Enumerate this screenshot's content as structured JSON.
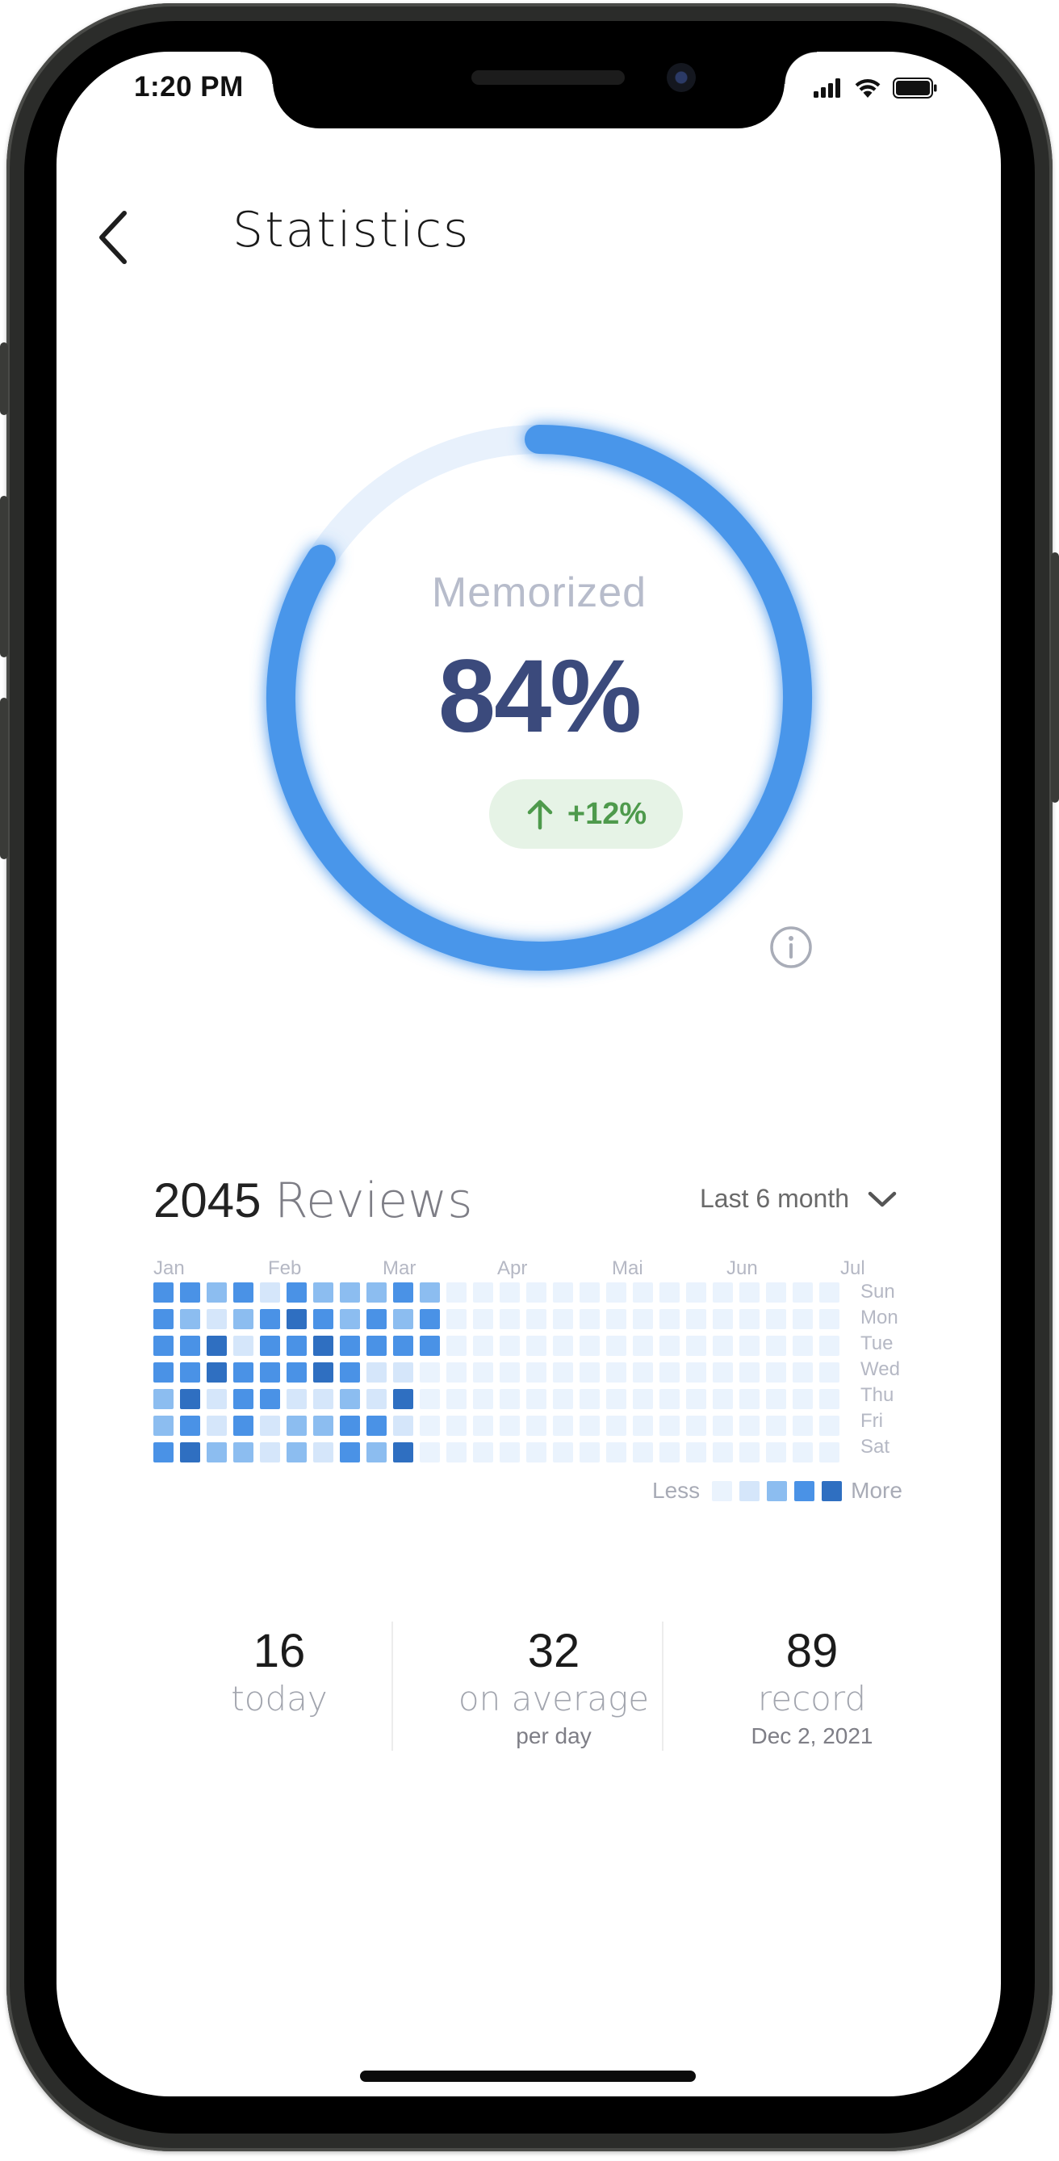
{
  "status_bar": {
    "time": "1:20 PM"
  },
  "header": {
    "title": "Statistics"
  },
  "progress": {
    "label": "Memorized",
    "value_text": "84%",
    "value": 0.84,
    "change": "+12%",
    "ring_color": "#4a96ea",
    "track_color": "#e8f1fc"
  },
  "reviews": {
    "count": "2045",
    "label": "Reviews",
    "range": "Last 6 month"
  },
  "heatmap": {
    "months": [
      "Jan",
      "Feb",
      "Mar",
      "Apr",
      "Mai",
      "Jun",
      "Jul"
    ],
    "days": [
      "Sun",
      "Mon",
      "Tue",
      "Wed",
      "Thu",
      "Fri",
      "Sat"
    ],
    "palette": [
      "#eaf3fd",
      "#d5e6fa",
      "#8cbdf0",
      "#4a92e6",
      "#2f6fc1"
    ],
    "weeks": [
      [
        3,
        3,
        3,
        3,
        2,
        2,
        3
      ],
      [
        3,
        2,
        3,
        3,
        4,
        3,
        4
      ],
      [
        2,
        1,
        4,
        4,
        1,
        1,
        2
      ],
      [
        3,
        2,
        1,
        3,
        3,
        3,
        2
      ],
      [
        1,
        3,
        3,
        3,
        3,
        1,
        1
      ],
      [
        3,
        4,
        3,
        3,
        1,
        2,
        2
      ],
      [
        2,
        3,
        4,
        4,
        1,
        2,
        1
      ],
      [
        2,
        2,
        3,
        3,
        2,
        3,
        3
      ],
      [
        2,
        3,
        3,
        1,
        1,
        3,
        2
      ],
      [
        3,
        2,
        3,
        1,
        4,
        1,
        4
      ],
      [
        2,
        3,
        3,
        0,
        0,
        0,
        0
      ],
      [
        0,
        0,
        0,
        0,
        0,
        0,
        0
      ],
      [
        0,
        0,
        0,
        0,
        0,
        0,
        0
      ],
      [
        0,
        0,
        0,
        0,
        0,
        0,
        0
      ],
      [
        0,
        0,
        0,
        0,
        0,
        0,
        0
      ],
      [
        0,
        0,
        0,
        0,
        0,
        0,
        0
      ],
      [
        0,
        0,
        0,
        0,
        0,
        0,
        0
      ],
      [
        0,
        0,
        0,
        0,
        0,
        0,
        0
      ],
      [
        0,
        0,
        0,
        0,
        0,
        0,
        0
      ],
      [
        0,
        0,
        0,
        0,
        0,
        0,
        0
      ],
      [
        0,
        0,
        0,
        0,
        0,
        0,
        0
      ],
      [
        0,
        0,
        0,
        0,
        0,
        0,
        0
      ],
      [
        0,
        0,
        0,
        0,
        0,
        0,
        0
      ],
      [
        0,
        0,
        0,
        0,
        0,
        0,
        0
      ],
      [
        0,
        0,
        0,
        0,
        0,
        0,
        0
      ],
      [
        0,
        0,
        0,
        0,
        0,
        0,
        0
      ]
    ],
    "legend_less": "Less",
    "legend_more": "More"
  },
  "stats": {
    "today": {
      "value": "16",
      "label": "today"
    },
    "average": {
      "value": "32",
      "label": "on average",
      "sub": "per day"
    },
    "record": {
      "value": "89",
      "label": "record",
      "sub": "Dec 2, 2021"
    }
  }
}
